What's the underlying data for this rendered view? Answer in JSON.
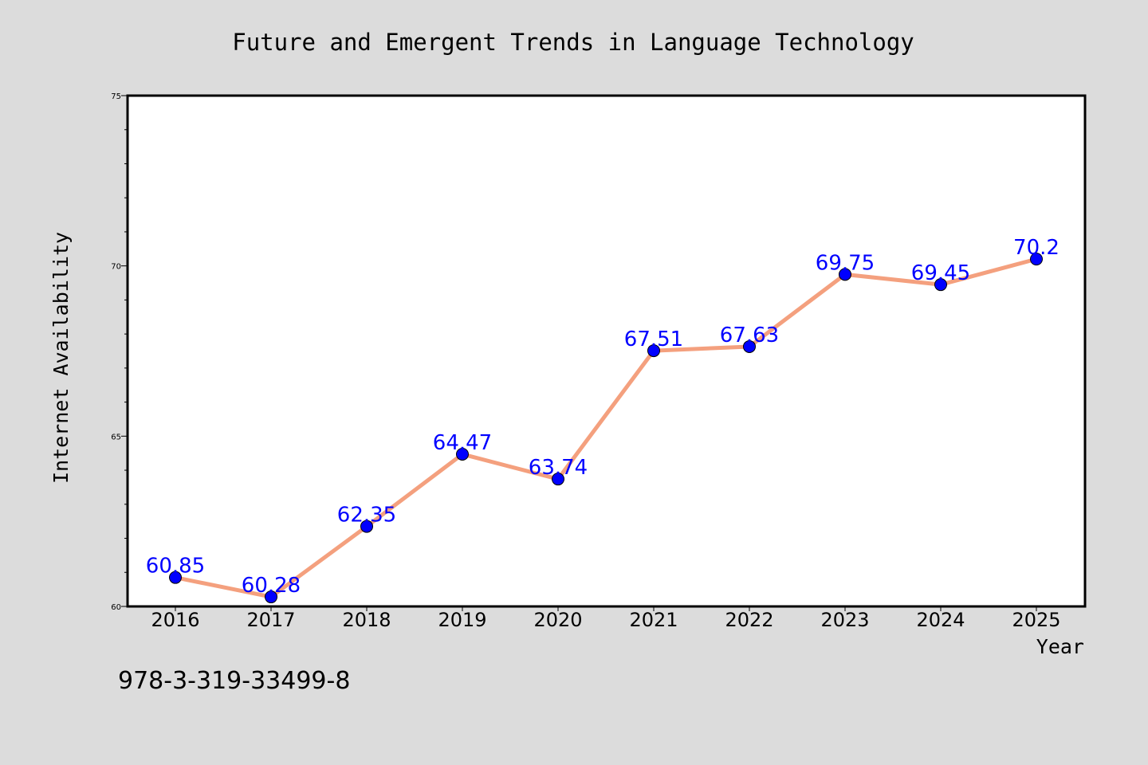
{
  "chart_data": {
    "type": "line",
    "title": "Future and Emergent Trends in Language Technology",
    "xlabel": "Year",
    "ylabel": "Internet Availability",
    "categories": [
      "2016",
      "2017",
      "2018",
      "2019",
      "2020",
      "2021",
      "2022",
      "2023",
      "2024",
      "2025"
    ],
    "series": [
      {
        "values": [
          60.85,
          60.28,
          62.35,
          64.47,
          63.74,
          67.51,
          67.63,
          69.75,
          69.45,
          70.2
        ],
        "line_color": "#f4a07e",
        "marker_color": "#0000ff",
        "label_color": "#0000ff"
      }
    ],
    "ylim": [
      60,
      75
    ],
    "yticks": [
      60,
      65,
      70,
      75
    ],
    "data_labels": [
      "60.85",
      "60.28",
      "62.35",
      "64.47",
      "63.74",
      "67.51",
      "67.63",
      "69.75",
      "69.45",
      "70.2"
    ],
    "grid": false,
    "legend": "none"
  },
  "footer_text": "978-3-319-33499-8",
  "colors": {
    "background": "#dcdcdc",
    "plot_background": "#ffffff"
  }
}
